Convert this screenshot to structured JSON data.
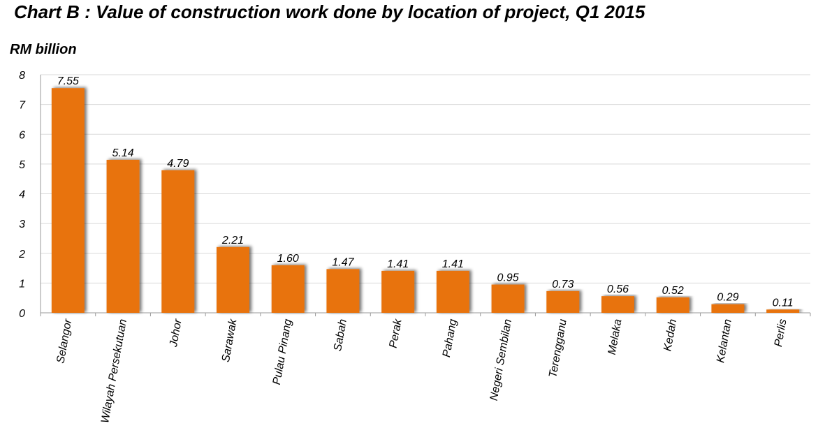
{
  "chart_data": {
    "type": "bar",
    "title": "Chart B : Value of construction work done by location of project, Q1 2015",
    "ylabel": "RM billion",
    "xlabel": "",
    "ylim": [
      0,
      8
    ],
    "yticks": [
      0,
      1,
      2,
      3,
      4,
      5,
      6,
      7,
      8
    ],
    "grid": true,
    "legend": "none",
    "bar_color": "#E8730F",
    "categories": [
      "Selangor",
      "Wilayah Persekutuan",
      "Johor",
      "Sarawak",
      "Pulau Pinang",
      "Sabah",
      "Perak",
      "Pahang",
      "Negeri Sembilan",
      "Terengganu",
      "Melaka",
      "Kedah",
      "Kelantan",
      "Perlis"
    ],
    "values": [
      7.55,
      5.14,
      4.79,
      2.21,
      1.6,
      1.47,
      1.41,
      1.41,
      0.95,
      0.73,
      0.56,
      0.52,
      0.29,
      0.11
    ],
    "value_labels": [
      "7.55",
      "5.14",
      "4.79",
      "2.21",
      "1.60",
      "1.47",
      "1.41",
      "1.41",
      "0.95",
      "0.73",
      "0.56",
      "0.52",
      "0.29",
      "0.11"
    ]
  }
}
